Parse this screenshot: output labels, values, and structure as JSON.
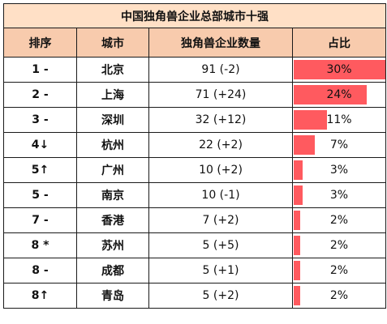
{
  "chart_data": {
    "type": "table",
    "title": "中国独角兽企业总部城市十强",
    "columns": [
      "排序",
      "城市",
      "独角兽企业数量",
      "占比"
    ],
    "rows": [
      {
        "rank": "1 -",
        "city": "北京",
        "count": "91 (-2)",
        "share_label": "30%",
        "share": 30
      },
      {
        "rank": "2 -",
        "city": "上海",
        "count": "71 (+24)",
        "share_label": "24%",
        "share": 24
      },
      {
        "rank": "3 -",
        "city": "深圳",
        "count": "32 (+12)",
        "share_label": "11%",
        "share": 11
      },
      {
        "rank": "4↓",
        "city": "杭州",
        "count": "22 (+2)",
        "share_label": "7%",
        "share": 7
      },
      {
        "rank": "5↑",
        "city": "广州",
        "count": "10 (+2)",
        "share_label": "3%",
        "share": 3
      },
      {
        "rank": "5 -",
        "city": "南京",
        "count": "10 (-1)",
        "share_label": "3%",
        "share": 3
      },
      {
        "rank": "7 -",
        "city": "香港",
        "count": "7 (+2)",
        "share_label": "2%",
        "share": 2
      },
      {
        "rank": "8 *",
        "city": "苏州",
        "count": "5 (+5)",
        "share_label": "2%",
        "share": 2
      },
      {
        "rank": "8 -",
        "city": "成都",
        "count": "5 (+1)",
        "share_label": "2%",
        "share": 2
      },
      {
        "rank": "8↑",
        "city": "青岛",
        "count": "5 (+2)",
        "share_label": "2%",
        "share": 2
      }
    ],
    "share_max": 30,
    "bar_color": "#ff5a5f",
    "header_color": "#f8cbad",
    "title_color": "#ffe0c6"
  }
}
